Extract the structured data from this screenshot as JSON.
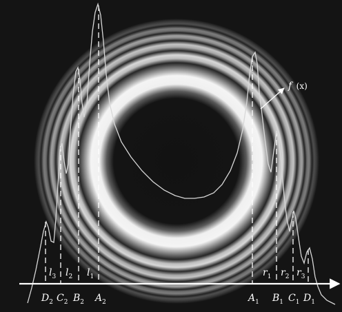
{
  "curve_label": {
    "main": "f",
    "arg": "(x)"
  },
  "left_points": [
    {
      "letter": "D",
      "sub": "2"
    },
    {
      "letter": "C",
      "sub": "2"
    },
    {
      "letter": "B",
      "sub": "2"
    },
    {
      "letter": "A",
      "sub": "2"
    }
  ],
  "right_points": [
    {
      "letter": "A",
      "sub": "1"
    },
    {
      "letter": "B",
      "sub": "1"
    },
    {
      "letter": "C",
      "sub": "1"
    },
    {
      "letter": "D",
      "sub": "1"
    }
  ],
  "left_intervals": [
    {
      "letter": "l",
      "sub": "3"
    },
    {
      "letter": "l",
      "sub": "2"
    },
    {
      "letter": "l",
      "sub": "1"
    }
  ],
  "right_intervals": [
    {
      "letter": "r",
      "sub": "1"
    },
    {
      "letter": "r",
      "sub": "2"
    },
    {
      "letter": "r",
      "sub": "3"
    }
  ],
  "colors": {
    "background": "#141414",
    "ring_bright": "#eaeaea",
    "curve": "#d8d8d8",
    "labels": "#ffffff"
  }
}
